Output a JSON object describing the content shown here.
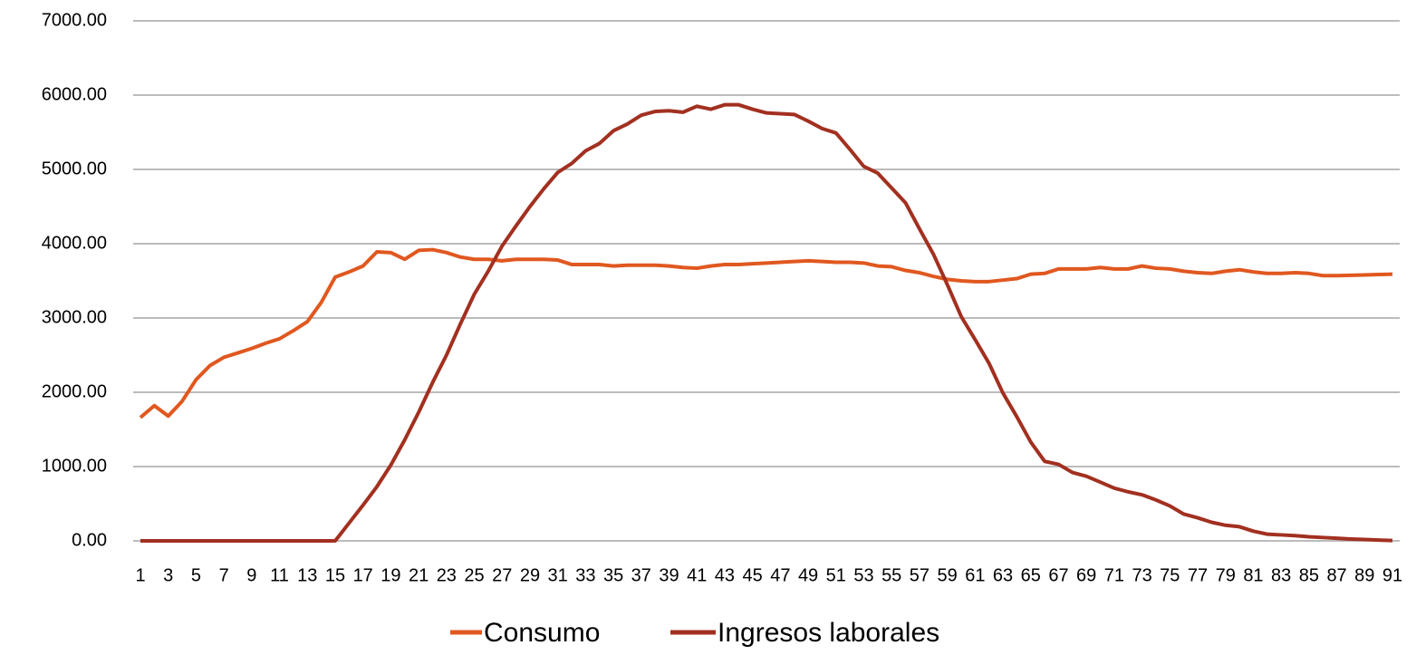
{
  "chart_data": {
    "type": "line",
    "categories": [
      1,
      null,
      3,
      null,
      5,
      null,
      7,
      null,
      9,
      null,
      11,
      null,
      13,
      null,
      15,
      null,
      17,
      null,
      19,
      null,
      21,
      null,
      23,
      null,
      25,
      null,
      27,
      null,
      29,
      null,
      31,
      null,
      33,
      null,
      35,
      null,
      37,
      null,
      39,
      null,
      41,
      null,
      43,
      null,
      45,
      null,
      47,
      null,
      49,
      null,
      51,
      null,
      53,
      null,
      55,
      null,
      57,
      null,
      59,
      null,
      61,
      null,
      63,
      null,
      65,
      null,
      67,
      null,
      69,
      null,
      71,
      null,
      73,
      null,
      75,
      null,
      77,
      null,
      79,
      null,
      81,
      null,
      83,
      null,
      85,
      null,
      87,
      null,
      89,
      null,
      91
    ],
    "series": [
      {
        "name": "Consumo",
        "color": "#e0581f",
        "values": [
          1660,
          1820,
          1680,
          1880,
          2170,
          2360,
          2470,
          2530,
          2590,
          2660,
          2720,
          2830,
          2950,
          3210,
          3550,
          3620,
          3700,
          3890,
          3880,
          3790,
          3910,
          3920,
          3880,
          3820,
          3790,
          3790,
          3770,
          3790,
          3790,
          3790,
          3780,
          3720,
          3720,
          3720,
          3700,
          3710,
          3710,
          3710,
          3700,
          3680,
          3670,
          3700,
          3720,
          3720,
          3730,
          3740,
          3750,
          3760,
          3770,
          3760,
          3750,
          3750,
          3740,
          3700,
          3690,
          3640,
          3610,
          3560,
          3520,
          3500,
          3490,
          3490,
          3510,
          3530,
          3590,
          3600,
          3660,
          3660,
          3660,
          3680,
          3660,
          3660,
          3700,
          3670,
          3660,
          3630,
          3610,
          3600,
          3630,
          3650,
          3620,
          3600,
          3600,
          3610,
          3600,
          3570,
          3570,
          3575,
          3580,
          3585,
          3590
        ]
      },
      {
        "name": "Ingresos laborales",
        "color": "#a23020",
        "values": [
          0,
          0,
          0,
          0,
          0,
          0,
          0,
          0,
          0,
          0,
          0,
          0,
          0,
          0,
          0,
          240,
          480,
          730,
          1020,
          1360,
          1730,
          2130,
          2500,
          2920,
          3320,
          3630,
          3970,
          4240,
          4500,
          4740,
          4960,
          5080,
          5250,
          5350,
          5520,
          5610,
          5730,
          5780,
          5790,
          5770,
          5850,
          5810,
          5870,
          5870,
          5810,
          5760,
          5750,
          5740,
          5650,
          5550,
          5490,
          5270,
          5040,
          4950,
          4750,
          4550,
          4200,
          3860,
          3450,
          3020,
          2710,
          2390,
          1990,
          1670,
          1330,
          1070,
          1030,
          920,
          870,
          790,
          710,
          660,
          620,
          550,
          470,
          360,
          310,
          250,
          210,
          190,
          130,
          90,
          80,
          70,
          55,
          45,
          35,
          25,
          18,
          10,
          5
        ]
      }
    ],
    "ylim": [
      0,
      7000
    ],
    "yticks": [
      {
        "value": 0,
        "label": "0.00"
      },
      {
        "value": 1000,
        "label": "1000.00"
      },
      {
        "value": 2000,
        "label": "2000.00"
      },
      {
        "value": 3000,
        "label": "3000.00"
      },
      {
        "value": 4000,
        "label": "4000.00"
      },
      {
        "value": 5000,
        "label": "5000.00"
      },
      {
        "value": 6000,
        "label": "6000.00"
      },
      {
        "value": 7000,
        "label": "7000.00"
      }
    ],
    "grid": true,
    "legend": "bottom"
  }
}
